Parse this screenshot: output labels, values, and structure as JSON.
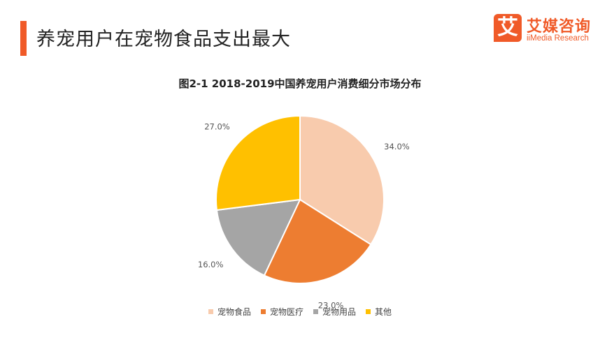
{
  "page": {
    "title": "养宠用户在宠物食品支出最大",
    "accent_color": "#f05a28"
  },
  "brand": {
    "logo_glyph": "艾",
    "name_cn": "艾媒咨询",
    "name_en": "iiMedia Research",
    "color": "#f05a28"
  },
  "chart_data": {
    "type": "pie",
    "title": "图2-1 2018-2019中国养宠用户消费细分市场分布",
    "slices": [
      {
        "name": "宠物食品",
        "value": 34.0,
        "label": "34.0%",
        "color": "#f8cbad"
      },
      {
        "name": "宠物医疗",
        "value": 23.0,
        "label": "23.0%",
        "color": "#ed7d31"
      },
      {
        "name": "宠物用品",
        "value": 16.0,
        "label": "16.0%",
        "color": "#a5a5a5"
      },
      {
        "name": "其他",
        "value": 27.0,
        "label": "27.0%",
        "color": "#ffc000"
      }
    ],
    "start_angle": "12 o'clock",
    "direction": "clockwise",
    "legend_position": "bottom"
  }
}
